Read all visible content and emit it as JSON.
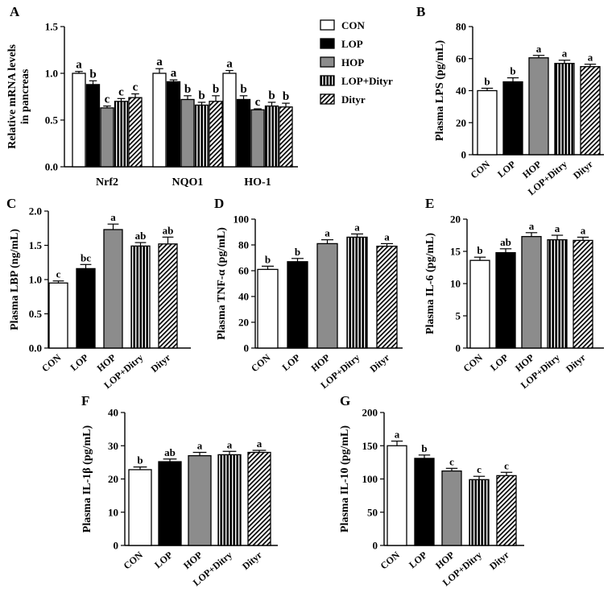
{
  "chart_data": [
    {
      "panel": "A",
      "type": "bar",
      "ylabel": "Relative mRNA levels in pancreas",
      "ylabel_lines": [
        "Relative mRNA levels",
        "in pancreas"
      ],
      "ylim": [
        0,
        1.5
      ],
      "yticks": [
        "0.0",
        "0.5",
        "1.0",
        "1.5"
      ],
      "categories": [
        "Nrf2",
        "NQO1",
        "HO-1"
      ],
      "series": [
        {
          "name": "CON",
          "values": [
            1.0,
            1.0,
            1.0
          ],
          "errors": [
            0.02,
            0.05,
            0.03
          ],
          "labels": [
            "a",
            "a",
            "a"
          ]
        },
        {
          "name": "LOP",
          "values": [
            0.88,
            0.91,
            0.72
          ],
          "errors": [
            0.04,
            0.02,
            0.04
          ],
          "labels": [
            "b",
            "a",
            "b"
          ]
        },
        {
          "name": "HOP",
          "values": [
            0.63,
            0.72,
            0.61
          ],
          "errors": [
            0.02,
            0.04,
            0.01
          ],
          "labels": [
            "c",
            "b",
            "c"
          ]
        },
        {
          "name": "LOP+Dityr",
          "values": [
            0.7,
            0.66,
            0.65
          ],
          "errors": [
            0.03,
            0.03,
            0.04
          ],
          "labels": [
            "c",
            "b",
            "b"
          ]
        },
        {
          "name": "Dityr",
          "values": [
            0.74,
            0.7,
            0.64
          ],
          "errors": [
            0.04,
            0.06,
            0.04
          ],
          "labels": [
            "c",
            "b",
            "b"
          ]
        }
      ]
    },
    {
      "panel": "B",
      "type": "bar",
      "ylabel": "Plasma LPS (pg/mL)",
      "ylim": [
        0,
        80
      ],
      "yticks": [
        "0",
        "20",
        "40",
        "60",
        "80"
      ],
      "categories": [
        "CON",
        "LOP",
        "HOP",
        "LOP+Ditry",
        "Dityr"
      ],
      "values": [
        40,
        45.5,
        60.5,
        57,
        55
      ],
      "errors": [
        1.5,
        2.5,
        1.5,
        2.0,
        1.5
      ],
      "labels": [
        "b",
        "b",
        "a",
        "a",
        "a"
      ]
    },
    {
      "panel": "C",
      "type": "bar",
      "ylabel": "Plasma LBP (ng/mL)",
      "ylim": [
        0,
        2.0
      ],
      "yticks": [
        "0.0",
        "0.5",
        "1.0",
        "1.5",
        "2.0"
      ],
      "categories": [
        "CON",
        "LOP",
        "HOP",
        "LOP+Ditry",
        "Dityr"
      ],
      "values": [
        0.95,
        1.16,
        1.73,
        1.49,
        1.52
      ],
      "errors": [
        0.03,
        0.06,
        0.08,
        0.05,
        0.1
      ],
      "labels": [
        "c",
        "bc",
        "a",
        "ab",
        "ab"
      ]
    },
    {
      "panel": "D",
      "type": "bar",
      "ylabel": "Plasma TNF-α (pg/mL)",
      "ylim": [
        0,
        100
      ],
      "yticks": [
        "0",
        "20",
        "40",
        "60",
        "80",
        "100"
      ],
      "categories": [
        "CON",
        "LOP",
        "HOP",
        "LOP+Ditry",
        "Dityr"
      ],
      "values": [
        61,
        67,
        81,
        86,
        79
      ],
      "errors": [
        2.5,
        2.5,
        3.0,
        2.5,
        2.0
      ],
      "labels": [
        "b",
        "b",
        "a",
        "a",
        "a"
      ]
    },
    {
      "panel": "E",
      "type": "bar",
      "ylabel": "Plasma IL-6 (pg/mL)",
      "ylim": [
        0,
        20
      ],
      "yticks": [
        "0",
        "5",
        "10",
        "15",
        "20"
      ],
      "categories": [
        "CON",
        "LOP",
        "HOP",
        "LOP+Ditry",
        "Dityr"
      ],
      "values": [
        13.6,
        14.8,
        17.3,
        16.8,
        16.7
      ],
      "errors": [
        0.5,
        0.6,
        0.6,
        0.7,
        0.5
      ],
      "labels": [
        "b",
        "ab",
        "a",
        "a",
        "a"
      ]
    },
    {
      "panel": "F",
      "type": "bar",
      "ylabel": "Plasma IL-1β (pg/mL)",
      "ylim": [
        0,
        40
      ],
      "yticks": [
        "0",
        "10",
        "20",
        "30",
        "40"
      ],
      "categories": [
        "CON",
        "LOP",
        "HOP",
        "LOP+Ditry",
        "Dityr"
      ],
      "values": [
        22.8,
        25.2,
        27.0,
        27.3,
        28.0
      ],
      "errors": [
        0.8,
        0.8,
        1.0,
        1.0,
        0.6
      ],
      "labels": [
        "b",
        "ab",
        "a",
        "a",
        "a"
      ]
    },
    {
      "panel": "G",
      "type": "bar",
      "ylabel": "Plasma IL-10 (pg/mL)",
      "ylim": [
        0,
        200
      ],
      "yticks": [
        "0",
        "50",
        "100",
        "150",
        "200"
      ],
      "categories": [
        "CON",
        "LOP",
        "HOP",
        "LOP+Ditry",
        "Dityr"
      ],
      "values": [
        150,
        131,
        112,
        99,
        105
      ],
      "errors": [
        7,
        5,
        4,
        5,
        5
      ],
      "labels": [
        "a",
        "b",
        "c",
        "c",
        "c"
      ]
    }
  ],
  "colors": {
    "CON": "#ffffff",
    "LOP": "#000000",
    "HOP": "#8c8c8c",
    "LOP+Dityr": "vertical-stripes",
    "Dityr": "diagonal-hatch"
  }
}
